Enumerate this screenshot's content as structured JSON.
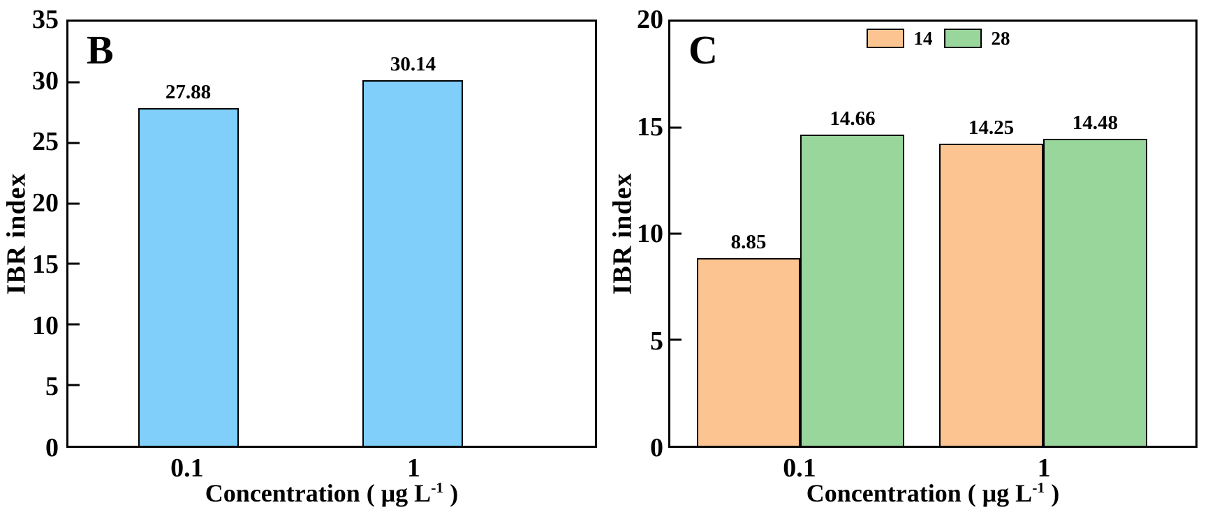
{
  "figure_title": "",
  "accent_colors": {
    "bar_blue": "#7FCFFA",
    "bar_orange": "#FBC491",
    "bar_green": "#99D69B",
    "axis_black": "#000000"
  },
  "chart_data": [
    {
      "type": "bar",
      "panel_label": "B",
      "title": "",
      "categories": [
        "0.1",
        "1"
      ],
      "series": [
        {
          "name": "IBR",
          "color": "#7FCFFA",
          "values": [
            27.88,
            30.14
          ],
          "value_labels": [
            "27.88",
            "30.14"
          ]
        }
      ],
      "xlabel": "Concentration ( μg L-1 )",
      "xlabel_parts": {
        "prefix": "Concentration ( μg L",
        "sup": "-1",
        "suffix": " )"
      },
      "ylabel": "IBR index",
      "ylim": [
        0,
        35
      ],
      "yticks": [
        0,
        5,
        10,
        15,
        20,
        25,
        30,
        35
      ],
      "grid": false,
      "legend": null
    },
    {
      "type": "bar",
      "panel_label": "C",
      "title": "",
      "categories": [
        "0.1",
        "1"
      ],
      "series": [
        {
          "name": "14",
          "color": "#FBC491",
          "values": [
            8.85,
            14.25
          ],
          "value_labels": [
            "8.85",
            "14.25"
          ]
        },
        {
          "name": "28",
          "color": "#99D69B",
          "values": [
            14.66,
            14.48
          ],
          "value_labels": [
            "14.66",
            "14.48"
          ]
        }
      ],
      "xlabel": "Concentration ( μg L-1 )",
      "xlabel_parts": {
        "prefix": "Concentration ( μg L",
        "sup": "-1",
        "suffix": " )"
      },
      "ylabel": "IBR index",
      "ylim": [
        0,
        20
      ],
      "yticks": [
        0,
        5,
        10,
        15,
        20
      ],
      "grid": false,
      "legend": {
        "position": "top-center",
        "entries": [
          "14",
          "28"
        ]
      }
    }
  ]
}
